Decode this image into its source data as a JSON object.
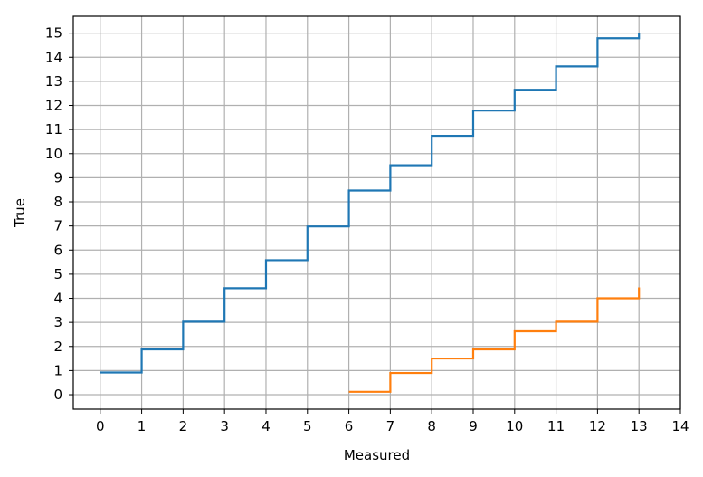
{
  "chart_data": {
    "type": "line",
    "step": "post",
    "title": "",
    "xlabel": "Measured",
    "ylabel": "True",
    "xlim": [
      -0.65,
      14
    ],
    "ylim": [
      -0.6,
      15.7
    ],
    "xticks": [
      0,
      1,
      2,
      3,
      4,
      5,
      6,
      7,
      8,
      9,
      10,
      11,
      12,
      13,
      14
    ],
    "yticks": [
      0,
      1,
      2,
      3,
      4,
      5,
      6,
      7,
      8,
      9,
      10,
      11,
      12,
      13,
      14,
      15
    ],
    "grid": true,
    "legend": "none",
    "series": [
      {
        "color": "#1f77b4",
        "x": [
          0,
          1,
          2,
          3,
          4,
          5,
          6,
          7,
          8,
          9,
          10,
          11,
          12,
          13
        ],
        "y": [
          0.92,
          1.88,
          3.03,
          4.42,
          5.58,
          6.98,
          8.47,
          9.52,
          10.74,
          11.79,
          12.65,
          13.62,
          14.79,
          15.0
        ]
      },
      {
        "color": "#ff7f0e",
        "x": [
          6,
          7,
          8,
          9,
          10,
          11,
          12,
          13
        ],
        "y": [
          0.12,
          0.9,
          1.5,
          1.88,
          2.63,
          3.03,
          4.0,
          4.45
        ]
      }
    ]
  }
}
